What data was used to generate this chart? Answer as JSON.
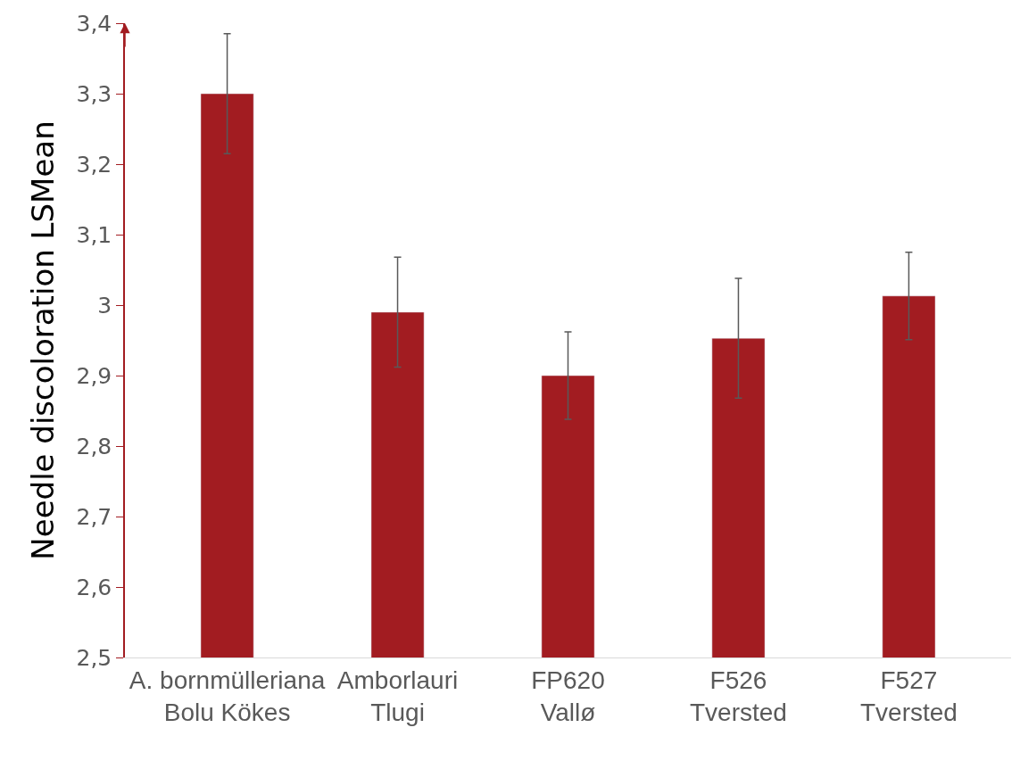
{
  "chart_data": {
    "type": "bar",
    "ylabel": "Needle discoloration LSMean",
    "categories": [
      "A. bornmülleriana\nBolu Kökes",
      "Amborlauri\nTlugi",
      "FP620\nVallø",
      "F526\nTversted",
      "F527\nTversted"
    ],
    "values": [
      3.3,
      2.99,
      2.9,
      2.953,
      3.013
    ],
    "errors": [
      0.085,
      0.078,
      0.062,
      0.085,
      0.062
    ],
    "color": "#a21c21",
    "ylim": [
      2.5,
      3.4
    ],
    "yticks": [
      {
        "value": 2.5,
        "label": "2,5"
      },
      {
        "value": 2.6,
        "label": "2,6"
      },
      {
        "value": 2.7,
        "label": "2,7"
      },
      {
        "value": 2.8,
        "label": "2,8"
      },
      {
        "value": 2.9,
        "label": "2,9"
      },
      3,
      {
        "value": 3.1,
        "label": "3,1"
      },
      {
        "value": 3.2,
        "label": "3,2"
      },
      {
        "value": 3.3,
        "label": "3,3"
      },
      {
        "value": 3.4,
        "label": "3,4"
      }
    ],
    "legend": false
  }
}
